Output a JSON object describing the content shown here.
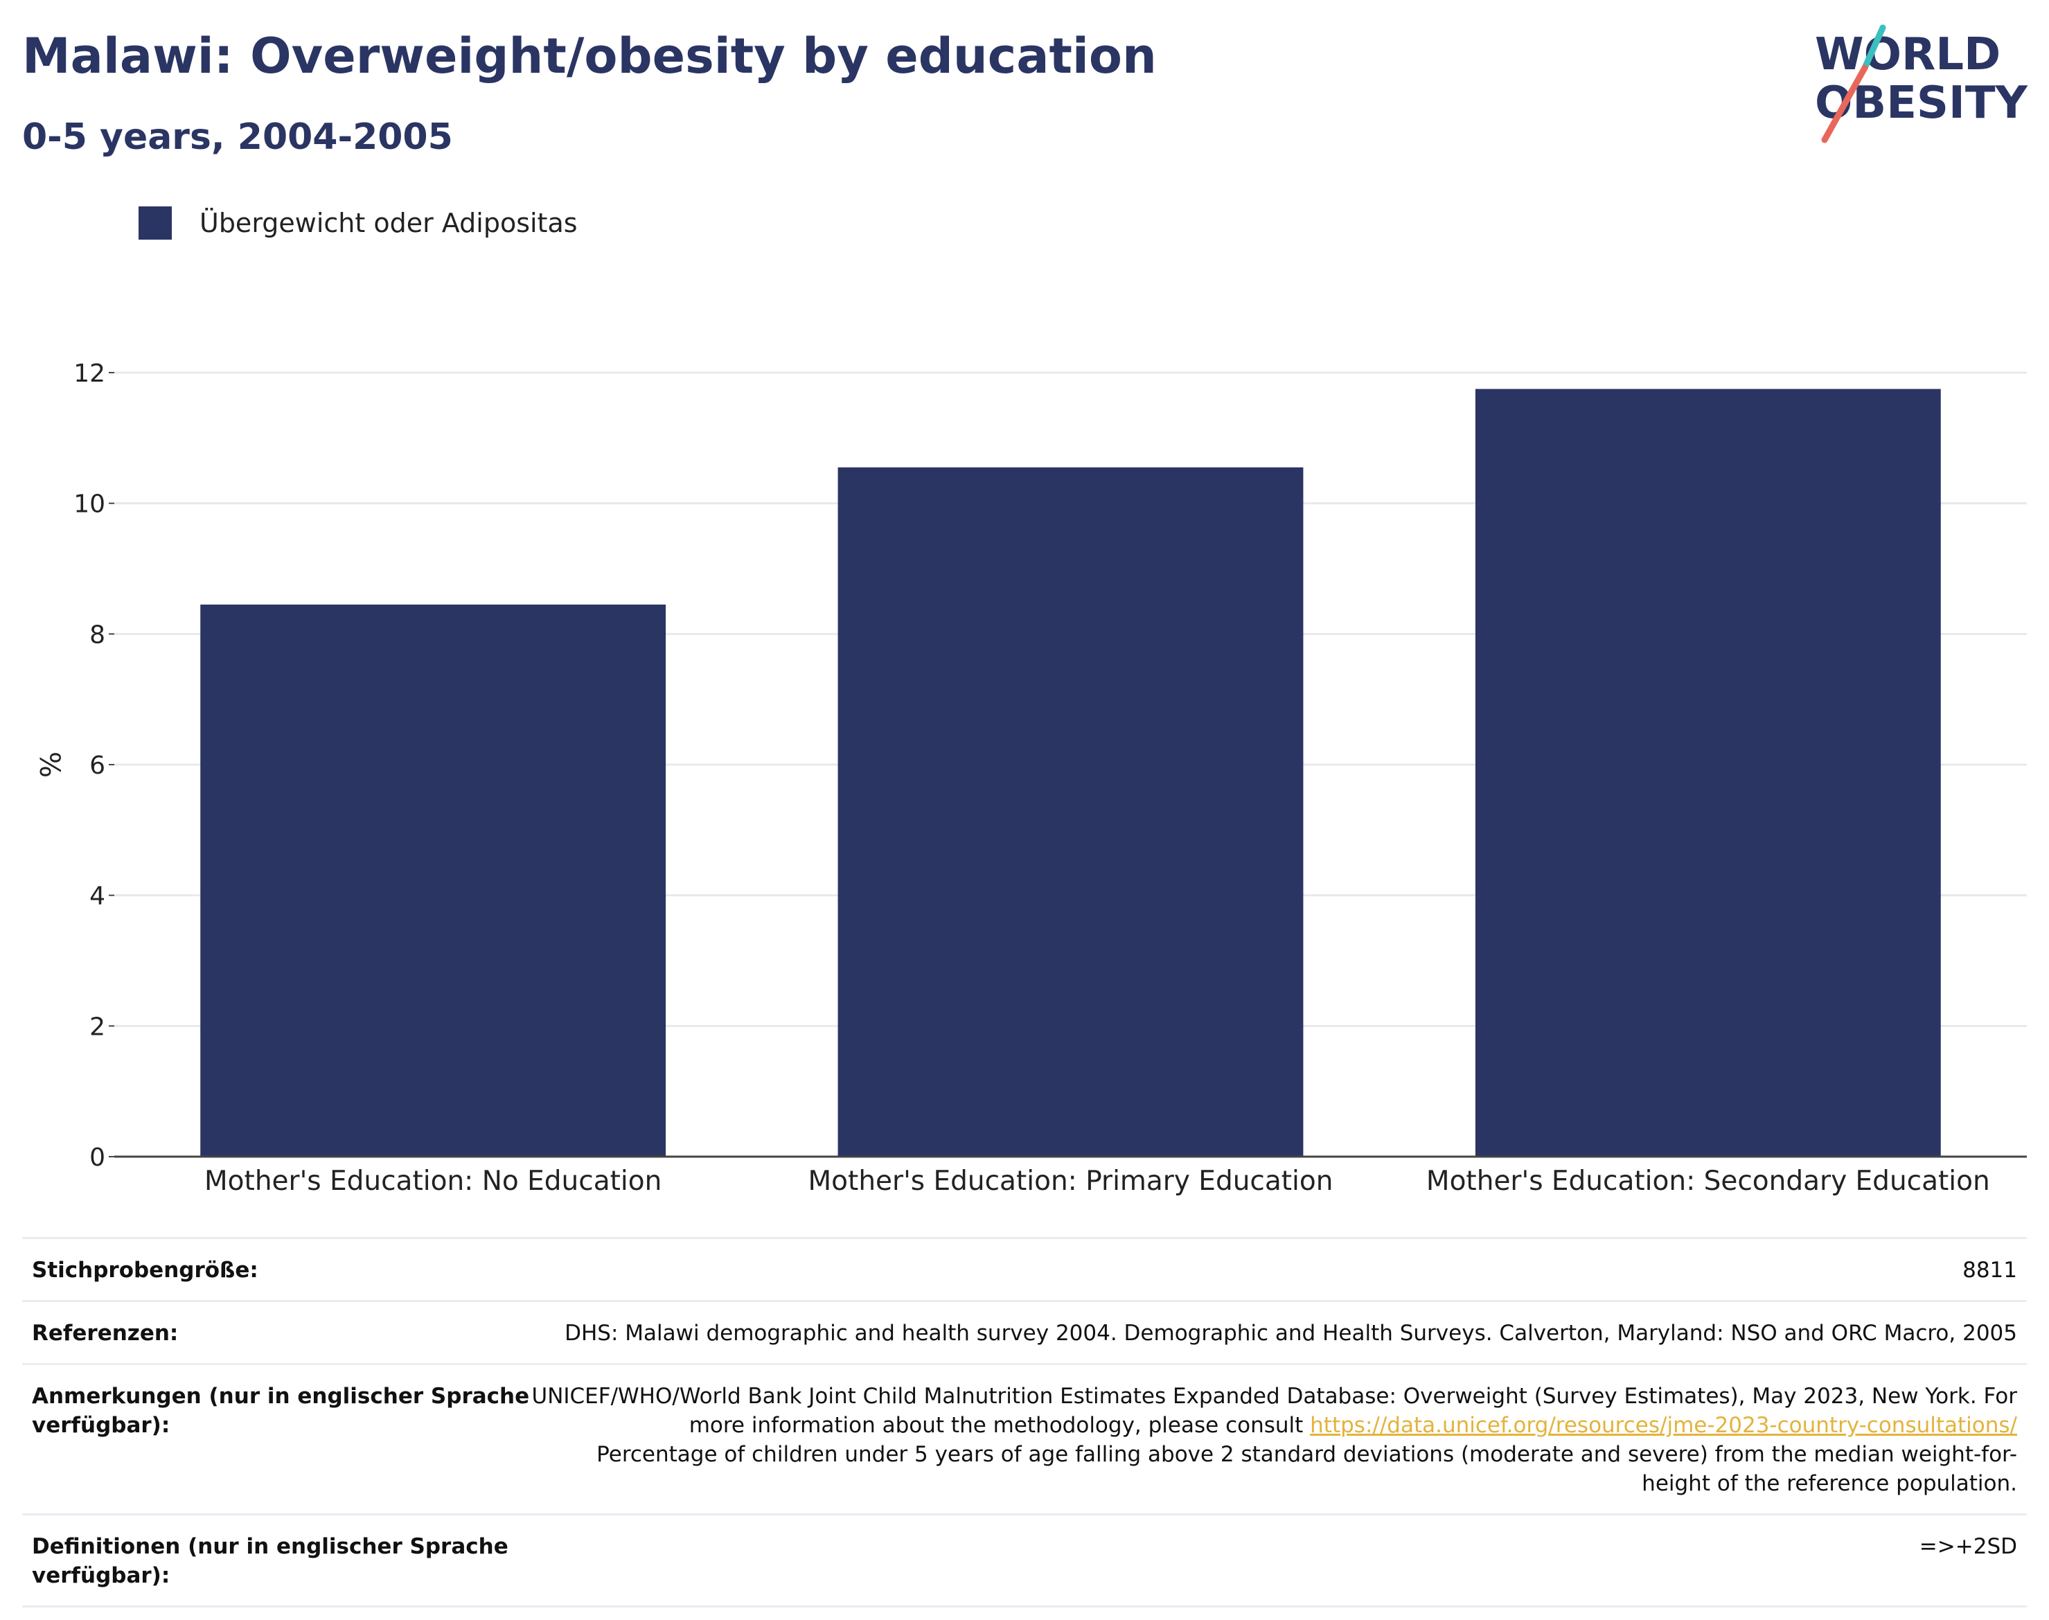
{
  "header": {
    "title": "Malawi: Overweight/obesity by education",
    "subtitle": "0-5 years, 2004-2005"
  },
  "logo": {
    "line1": "WORLD",
    "line2": "OBESITY",
    "colors": {
      "navy": "#2a3563",
      "teal": "#3bbfbf",
      "coral": "#e8675a"
    }
  },
  "legend": {
    "label": "Übergewicht oder Adipositas",
    "color": "#2a3563"
  },
  "chart_data": {
    "type": "bar",
    "categories": [
      "Mother's Education: No Education",
      "Mother's Education: Primary Education",
      "Mother's Education: Secondary Education"
    ],
    "series": [
      {
        "name": "Übergewicht oder Adipositas",
        "values": [
          8.45,
          10.55,
          11.75
        ],
        "color": "#2a3563"
      }
    ],
    "ylabel": "%",
    "ylim": [
      0,
      12
    ],
    "yticks": [
      0,
      2,
      4,
      6,
      8,
      10,
      12
    ],
    "grid": true,
    "legend_position": "top-left"
  },
  "info": {
    "sample_size": {
      "label": "Stichprobengröße:",
      "value": "8811"
    },
    "references": {
      "label": "Referenzen:",
      "value": "DHS: Malawi demographic and health survey 2004. Demographic and Health Surveys. Calverton, Maryland: NSO and ORC Macro, 2005"
    },
    "notes": {
      "label": "Anmerkungen (nur in englischer Sprache verfügbar):",
      "text_before": "UNICEF/WHO/World Bank Joint Child Malnutrition Estimates Expanded Database: Overweight (Survey Estimates), May 2023, New York. For more information about the methodology, please consult ",
      "link": "https://data.unicef.org/resources/jme-2023-country-consultations/",
      "text_after": "Percentage of children under 5 years of age falling above 2 standard deviations (moderate and severe) from the median weight-for-height of the reference population."
    },
    "definitions": {
      "label": "Definitionen (nur in englischer Sprache verfügbar):",
      "value": "=>+2SD"
    }
  }
}
